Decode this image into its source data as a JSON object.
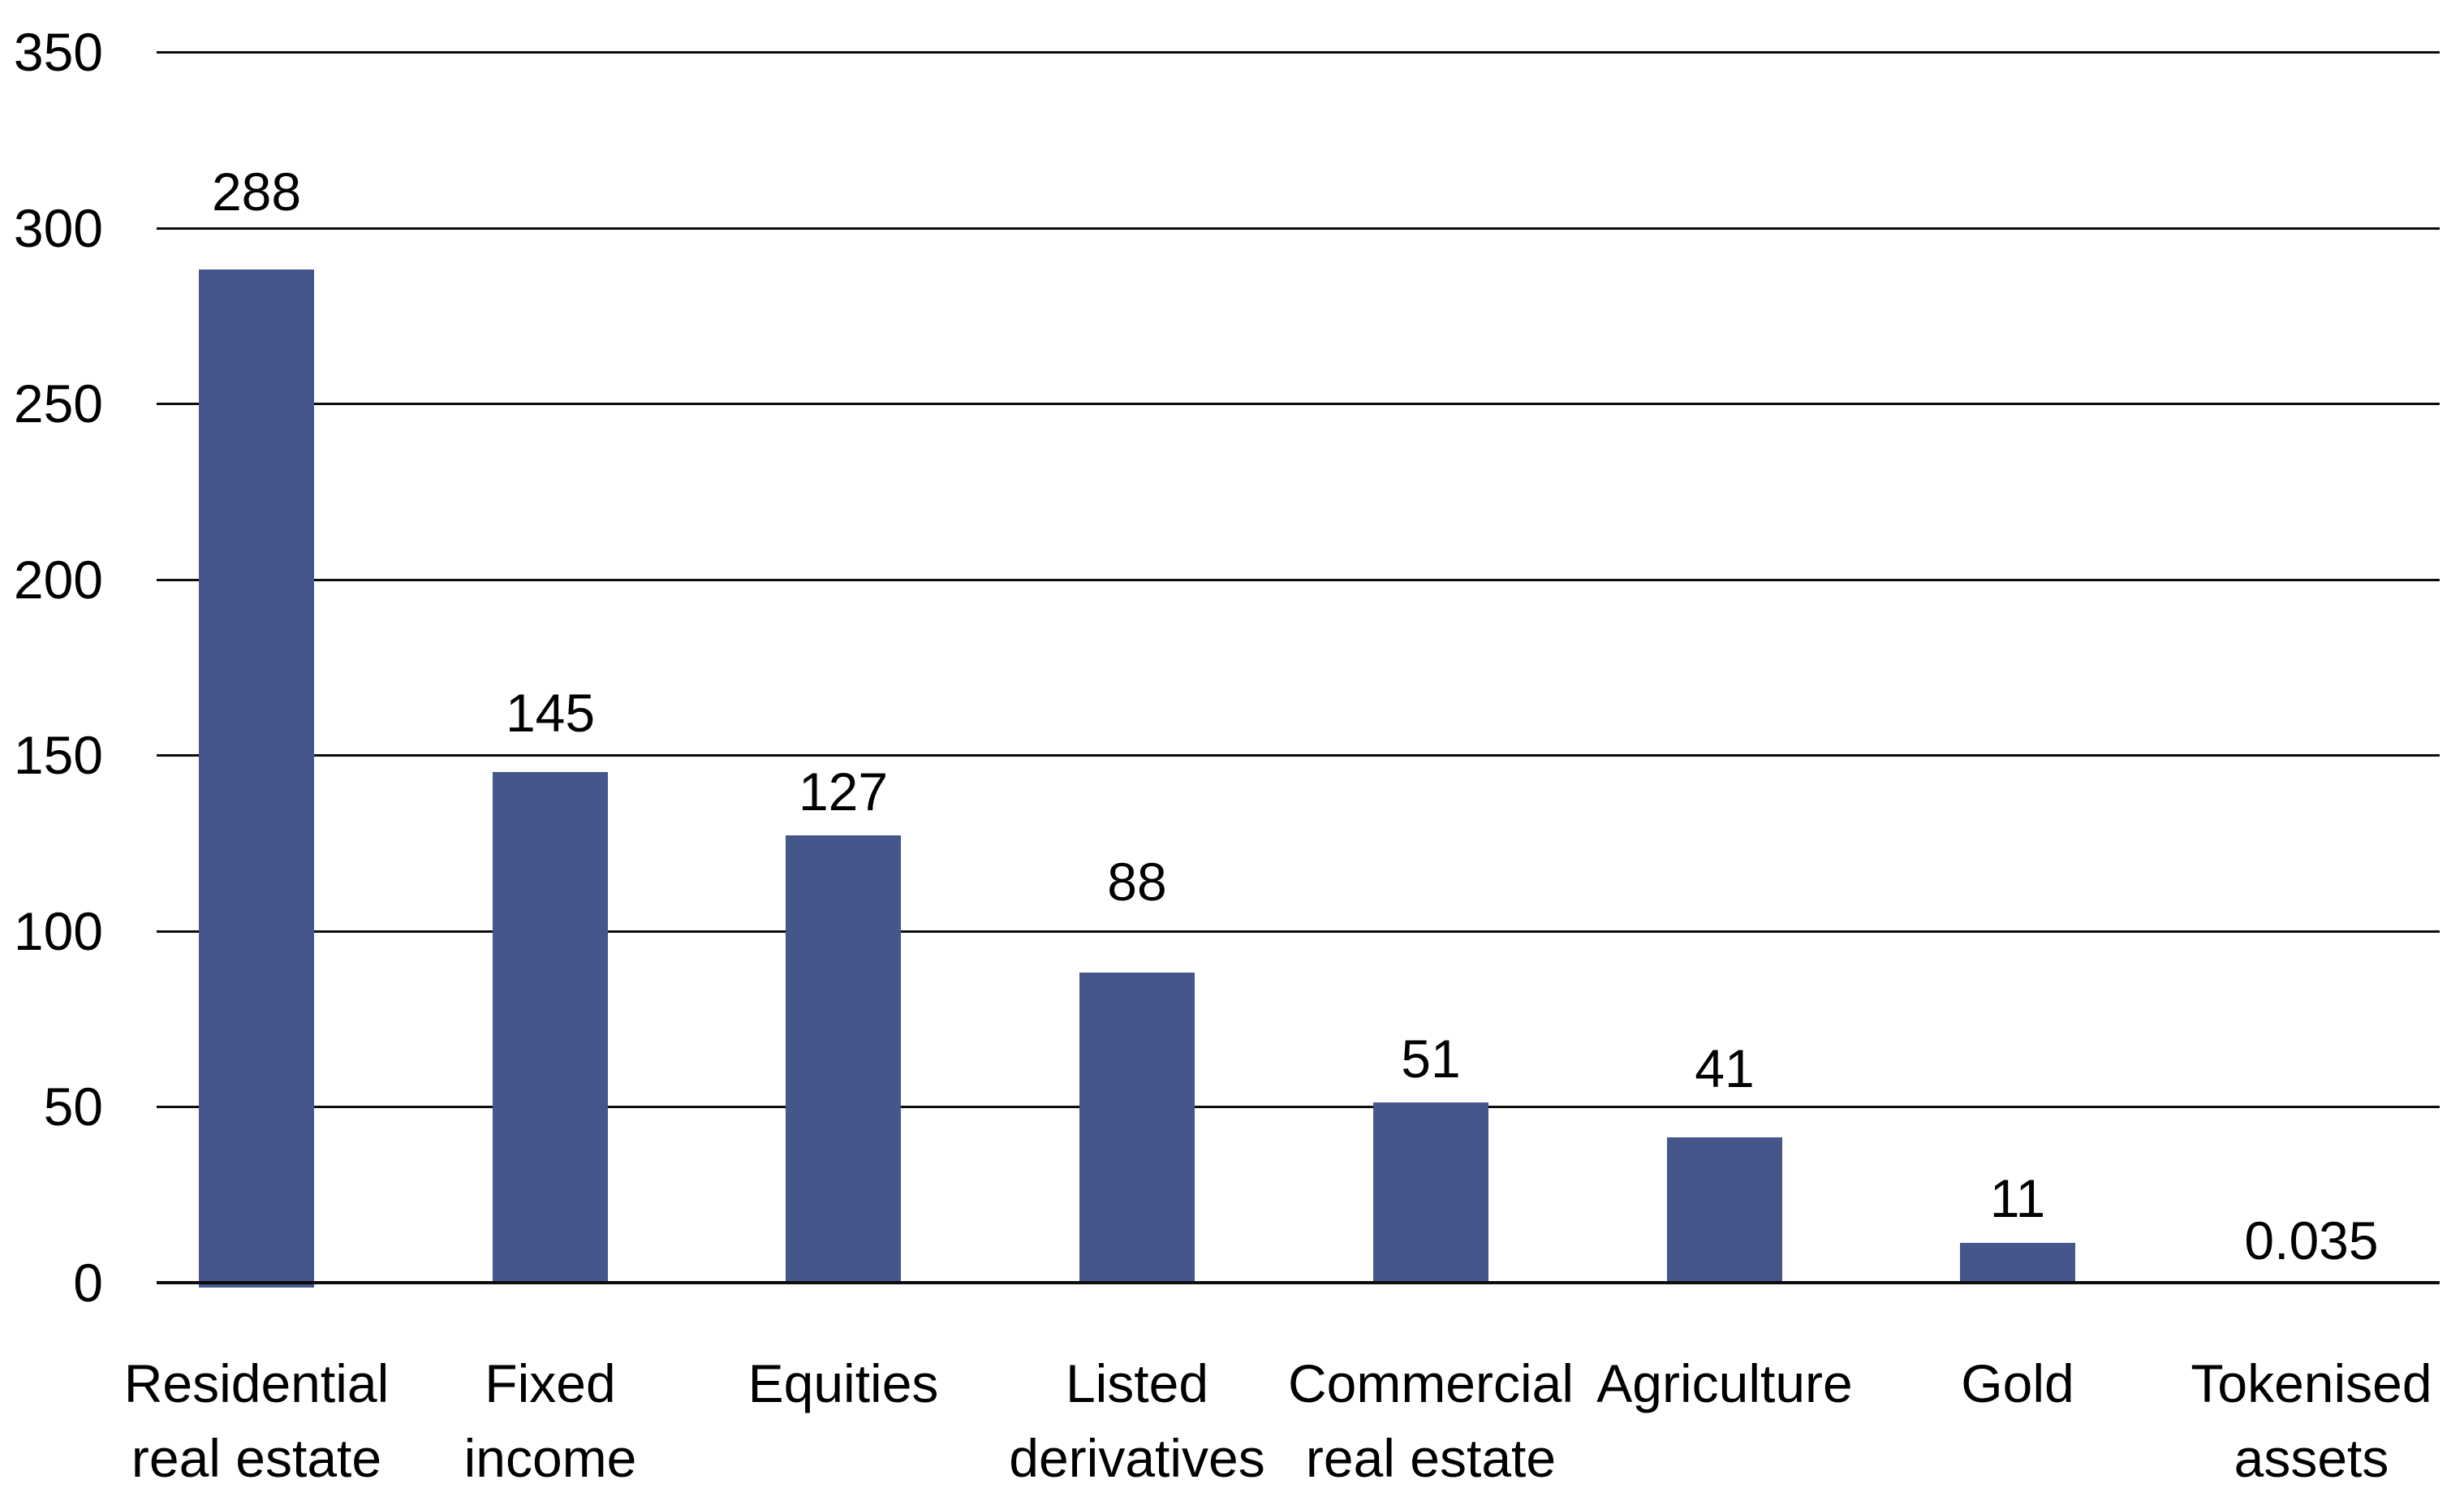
{
  "chart_data": {
    "type": "bar",
    "title": "",
    "xlabel": "",
    "ylabel": "",
    "categories": [
      "Residential real estate",
      "Fixed income",
      "Equities",
      "Listed derivatives",
      "Commercial real estate",
      "Agriculture",
      "Gold",
      "Tokenised assets"
    ],
    "category_lines": [
      [
        "Residential",
        "real estate"
      ],
      [
        "Fixed",
        "income"
      ],
      [
        "Equities"
      ],
      [
        "Listed",
        "derivatives"
      ],
      [
        "Commercial",
        "real estate"
      ],
      [
        "Agriculture"
      ],
      [
        "Gold"
      ],
      [
        "Tokenised",
        "assets"
      ]
    ],
    "values": [
      288,
      145,
      127,
      88,
      51,
      41,
      11,
      0.035
    ],
    "value_labels": [
      "288",
      "145",
      "127",
      "88",
      "51",
      "41",
      "11",
      "0.035"
    ],
    "y_ticks": [
      350,
      300,
      250,
      200,
      150,
      100,
      50,
      0
    ],
    "ylim": [
      0,
      350
    ],
    "grid": true,
    "legend": false,
    "colors": {
      "bar": "#45568A",
      "gridline": "#0d0d0d",
      "text": "#000000",
      "background": "#FFFFFF"
    }
  }
}
